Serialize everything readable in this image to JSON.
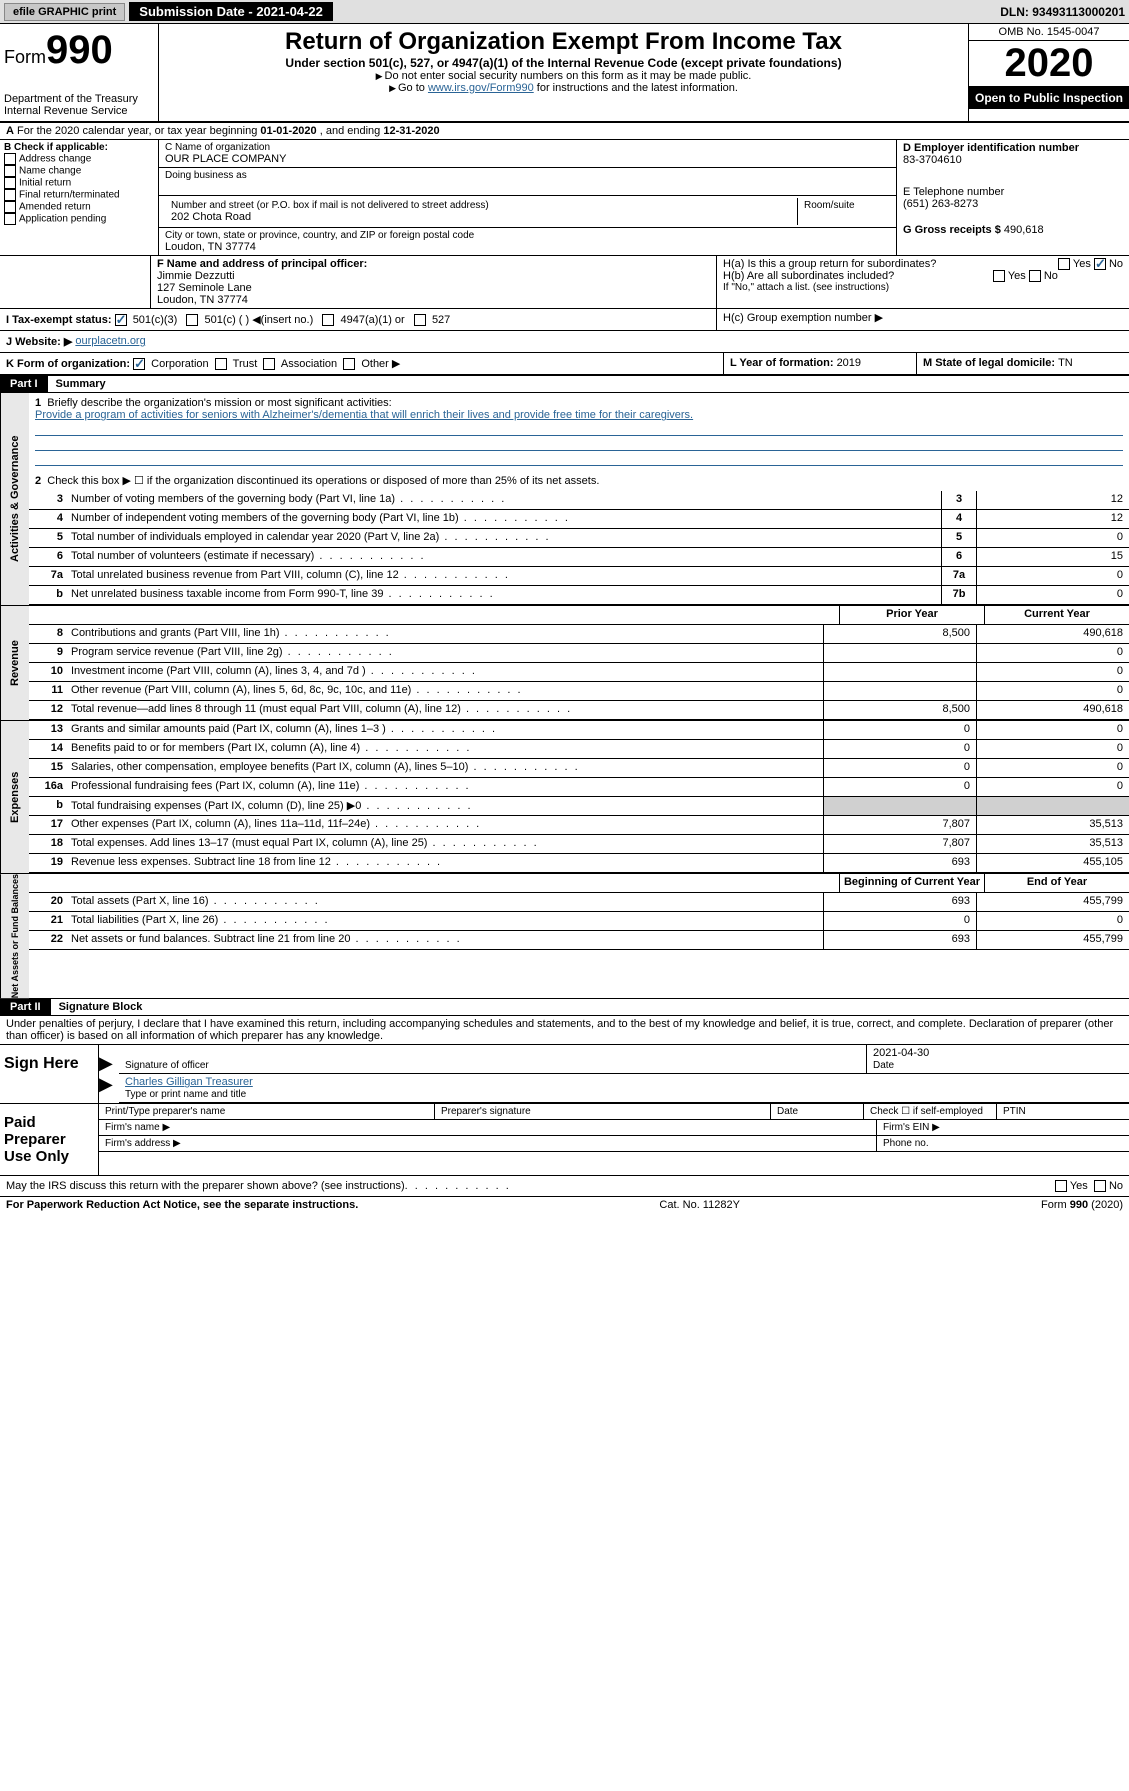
{
  "top": {
    "efile": "efile GRAPHIC print",
    "submission": "Submission Date - 2021-04-22",
    "dln": "DLN: 93493113000201"
  },
  "header": {
    "form_word": "Form",
    "form_num": "990",
    "title": "Return of Organization Exempt From Income Tax",
    "subtitle": "Under section 501(c), 527, or 4947(a)(1) of the Internal Revenue Code (except private foundations)",
    "note1": "Do not enter social security numbers on this form as it may be made public.",
    "note2_pre": "Go to ",
    "note2_link": "www.irs.gov/Form990",
    "note2_post": " for instructions and the latest information.",
    "dept": "Department of the Treasury\nInternal Revenue Service",
    "omb": "OMB No. 1545-0047",
    "year": "2020",
    "inspection": "Open to Public Inspection"
  },
  "rowA": {
    "text_pre": "For the 2020 calendar year, or tax year beginning ",
    "begin": "01-01-2020",
    "mid": " , and ending ",
    "end": "12-31-2020"
  },
  "boxB": {
    "label": "B Check if applicable:",
    "items": [
      "Address change",
      "Name change",
      "Initial return",
      "Final return/terminated",
      "Amended return",
      "Application pending"
    ]
  },
  "boxC": {
    "name_label": "C Name of organization",
    "name": "OUR PLACE COMPANY",
    "dba_label": "Doing business as",
    "addr_label": "Number and street (or P.O. box if mail is not delivered to street address)",
    "addr": "202 Chota Road",
    "room_label": "Room/suite",
    "city_label": "City or town, state or province, country, and ZIP or foreign postal code",
    "city": "Loudon, TN  37774",
    "officer_label": "F  Name and address of principal officer:",
    "officer_name": "Jimmie Dezzutti",
    "officer_addr1": "127 Seminole Lane",
    "officer_addr2": "Loudon, TN  37774"
  },
  "boxD": {
    "ein_label": "D Employer identification number",
    "ein": "83-3704610",
    "phone_label": "E Telephone number",
    "phone": "(651) 263-8273",
    "gross_label": "G Gross receipts $ ",
    "gross": "490,618"
  },
  "boxH": {
    "ha": "H(a)  Is this a group return for subordinates?",
    "hb": "H(b)  Are all subordinates included?",
    "hb_note": "If \"No,\" attach a list. (see instructions)",
    "hc": "H(c)  Group exemption number ▶",
    "yes": "Yes",
    "no": "No"
  },
  "rowI": {
    "label": "I    Tax-exempt status:",
    "opt1": "501(c)(3)",
    "opt2": "501(c) (  ) ◀(insert no.)",
    "opt3": "4947(a)(1) or",
    "opt4": "527"
  },
  "rowJ": {
    "label": "J   Website: ▶",
    "value": "ourplacetn.org"
  },
  "rowK": {
    "label": "K Form of organization:",
    "opts": [
      "Corporation",
      "Trust",
      "Association",
      "Other ▶"
    ],
    "L_label": "L Year of formation: ",
    "L_val": "2019",
    "M_label": "M State of legal domicile: ",
    "M_val": "TN"
  },
  "part1": {
    "label": "Part I",
    "title": "Summary",
    "tab1": "Activities & Governance",
    "tab2": "Revenue",
    "tab3": "Expenses",
    "tab4": "Net Assets or Fund Balances",
    "q1": "Briefly describe the organization's mission or most significant activities:",
    "mission": "Provide a program of activities for seniors with Alzheimer's/dementia that will enrich their lives and provide free time for their caregivers.",
    "q2": "Check this box ▶ ☐  if the organization discontinued its operations or disposed of more than 25% of its net assets.",
    "lines_gov": [
      {
        "n": "3",
        "t": "Number of voting members of the governing body (Part VI, line 1a)",
        "b": "3",
        "v": "12"
      },
      {
        "n": "4",
        "t": "Number of independent voting members of the governing body (Part VI, line 1b)",
        "b": "4",
        "v": "12"
      },
      {
        "n": "5",
        "t": "Total number of individuals employed in calendar year 2020 (Part V, line 2a)",
        "b": "5",
        "v": "0"
      },
      {
        "n": "6",
        "t": "Total number of volunteers (estimate if necessary)",
        "b": "6",
        "v": "15"
      },
      {
        "n": "7a",
        "t": "Total unrelated business revenue from Part VIII, column (C), line 12",
        "b": "7a",
        "v": "0"
      },
      {
        "n": "b",
        "t": "Net unrelated business taxable income from Form 990-T, line 39",
        "b": "7b",
        "v": "0"
      }
    ],
    "col_prior": "Prior Year",
    "col_current": "Current Year",
    "lines_rev": [
      {
        "n": "8",
        "t": "Contributions and grants (Part VIII, line 1h)",
        "p": "8,500",
        "c": "490,618"
      },
      {
        "n": "9",
        "t": "Program service revenue (Part VIII, line 2g)",
        "p": "",
        "c": "0"
      },
      {
        "n": "10",
        "t": "Investment income (Part VIII, column (A), lines 3, 4, and 7d )",
        "p": "",
        "c": "0"
      },
      {
        "n": "11",
        "t": "Other revenue (Part VIII, column (A), lines 5, 6d, 8c, 9c, 10c, and 11e)",
        "p": "",
        "c": "0"
      },
      {
        "n": "12",
        "t": "Total revenue—add lines 8 through 11 (must equal Part VIII, column (A), line 12)",
        "p": "8,500",
        "c": "490,618"
      }
    ],
    "lines_exp": [
      {
        "n": "13",
        "t": "Grants and similar amounts paid (Part IX, column (A), lines 1–3 )",
        "p": "0",
        "c": "0"
      },
      {
        "n": "14",
        "t": "Benefits paid to or for members (Part IX, column (A), line 4)",
        "p": "0",
        "c": "0"
      },
      {
        "n": "15",
        "t": "Salaries, other compensation, employee benefits (Part IX, column (A), lines 5–10)",
        "p": "0",
        "c": "0"
      },
      {
        "n": "16a",
        "t": "Professional fundraising fees (Part IX, column (A), line 11e)",
        "p": "0",
        "c": "0"
      },
      {
        "n": "b",
        "t": "Total fundraising expenses (Part IX, column (D), line 25) ▶0",
        "p": "",
        "c": ""
      },
      {
        "n": "17",
        "t": "Other expenses (Part IX, column (A), lines 11a–11d, 11f–24e)",
        "p": "7,807",
        "c": "35,513"
      },
      {
        "n": "18",
        "t": "Total expenses. Add lines 13–17 (must equal Part IX, column (A), line 25)",
        "p": "7,807",
        "c": "35,513"
      },
      {
        "n": "19",
        "t": "Revenue less expenses. Subtract line 18 from line 12",
        "p": "693",
        "c": "455,105"
      }
    ],
    "col_begin": "Beginning of Current Year",
    "col_end": "End of Year",
    "lines_net": [
      {
        "n": "20",
        "t": "Total assets (Part X, line 16)",
        "p": "693",
        "c": "455,799"
      },
      {
        "n": "21",
        "t": "Total liabilities (Part X, line 26)",
        "p": "0",
        "c": "0"
      },
      {
        "n": "22",
        "t": "Net assets or fund balances. Subtract line 21 from line 20",
        "p": "693",
        "c": "455,799"
      }
    ]
  },
  "part2": {
    "label": "Part II",
    "title": "Signature Block",
    "declaration": "Under penalties of perjury, I declare that I have examined this return, including accompanying schedules and statements, and to the best of my knowledge and belief, it is true, correct, and complete. Declaration of preparer (other than officer) is based on all information of which preparer has any knowledge.",
    "sign_here": "Sign Here",
    "sig_officer": "Signature of officer",
    "sig_date": "2021-04-30",
    "date_label": "Date",
    "sig_name": "Charles Gilligan Treasurer",
    "sig_name_label": "Type or print name and title",
    "paid": "Paid Preparer Use Only",
    "prep_name": "Print/Type preparer's name",
    "prep_sig": "Preparer's signature",
    "prep_date": "Date",
    "prep_check": "Check ☐ if self-employed",
    "ptin": "PTIN",
    "firm_name": "Firm's name   ▶",
    "firm_ein": "Firm's EIN ▶",
    "firm_addr": "Firm's address ▶",
    "firm_phone": "Phone no."
  },
  "footer": {
    "discuss": "May the IRS discuss this return with the preparer shown above? (see instructions)",
    "yes": "Yes",
    "no": "No",
    "paperwork": "For Paperwork Reduction Act Notice, see the separate instructions.",
    "cat": "Cat. No. 11282Y",
    "form": "Form 990 (2020)"
  },
  "colors": {
    "link": "#2a6496",
    "black": "#000000",
    "bg": "#ffffff",
    "gray_bg": "#e8e8e8"
  }
}
